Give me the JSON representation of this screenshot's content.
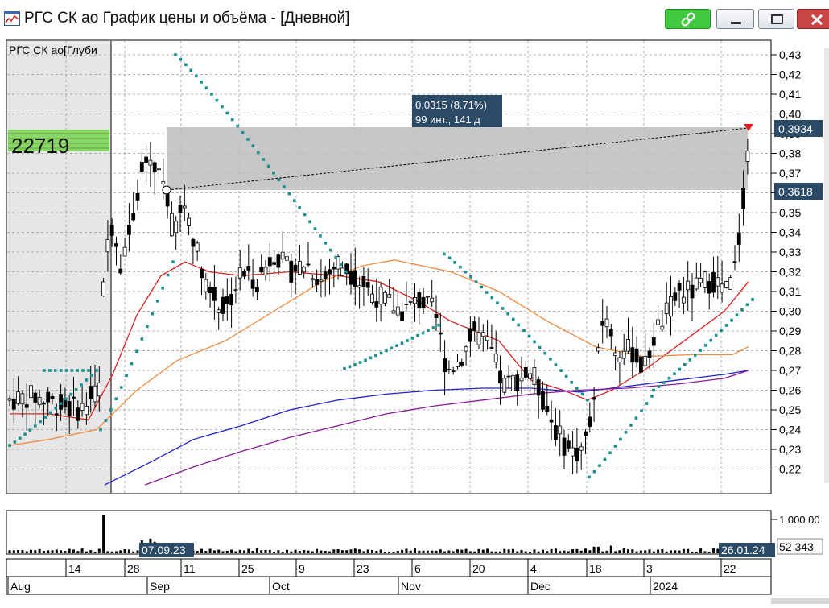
{
  "window": {
    "title": "РГС СК ао График цены и объёма - [Дневной]",
    "app_icon": "chart-window-icon",
    "buttons": [
      "link-icon",
      "minimize-icon",
      "maximize-icon",
      "close-icon"
    ]
  },
  "chart": {
    "legend_label": "РГС СК ао[Глуби",
    "depth_value": "22719",
    "measure_label": {
      "line1": "0,0315 (8.71%)",
      "line2": "99 инт., 141 д"
    },
    "price_last_label": "0,3934",
    "price_ref_label": "0,3618",
    "price_ticks": [
      "0,43",
      "0,42",
      "0,41",
      "0,40",
      "0,39",
      "0,38",
      "0,37",
      "0,36",
      "0,35",
      "0,34",
      "0,33",
      "0,32",
      "0,31",
      "0,30",
      "0,29",
      "0,28",
      "0,27",
      "0,26",
      "0,25",
      "0,24",
      "0,23",
      "0,22"
    ],
    "volume_ticks": [
      "1 000 00"
    ],
    "volume_last_label": "52 343",
    "date_left_label": "07.09.23",
    "date_right_label": "26.01.24",
    "x_days": [
      {
        "label": "14"
      },
      {
        "label": "28"
      },
      {
        "label": "11"
      },
      {
        "label": "25"
      },
      {
        "label": "9"
      },
      {
        "label": "23"
      },
      {
        "label": "6"
      },
      {
        "label": "20"
      },
      {
        "label": "4"
      },
      {
        "label": "18"
      },
      {
        "label": "3"
      },
      {
        "label": "22"
      }
    ],
    "x_months": [
      {
        "label": "Aug"
      },
      {
        "label": "Sep"
      },
      {
        "label": "Oct"
      },
      {
        "label": "Nov"
      },
      {
        "label": "Dec"
      },
      {
        "label": "2024"
      }
    ],
    "colors": {
      "candles": "#000000",
      "sar": "#1a8f8f",
      "ma_fast": "#e02020",
      "ma_mid": "#f08a40",
      "ma_slow1": "#2020d0",
      "ma_slow2": "#8a1a9a",
      "highlight": "#bdbdbd",
      "label_bg": "#2b4a66",
      "depth_bg": "#7fd35a"
    }
  }
}
